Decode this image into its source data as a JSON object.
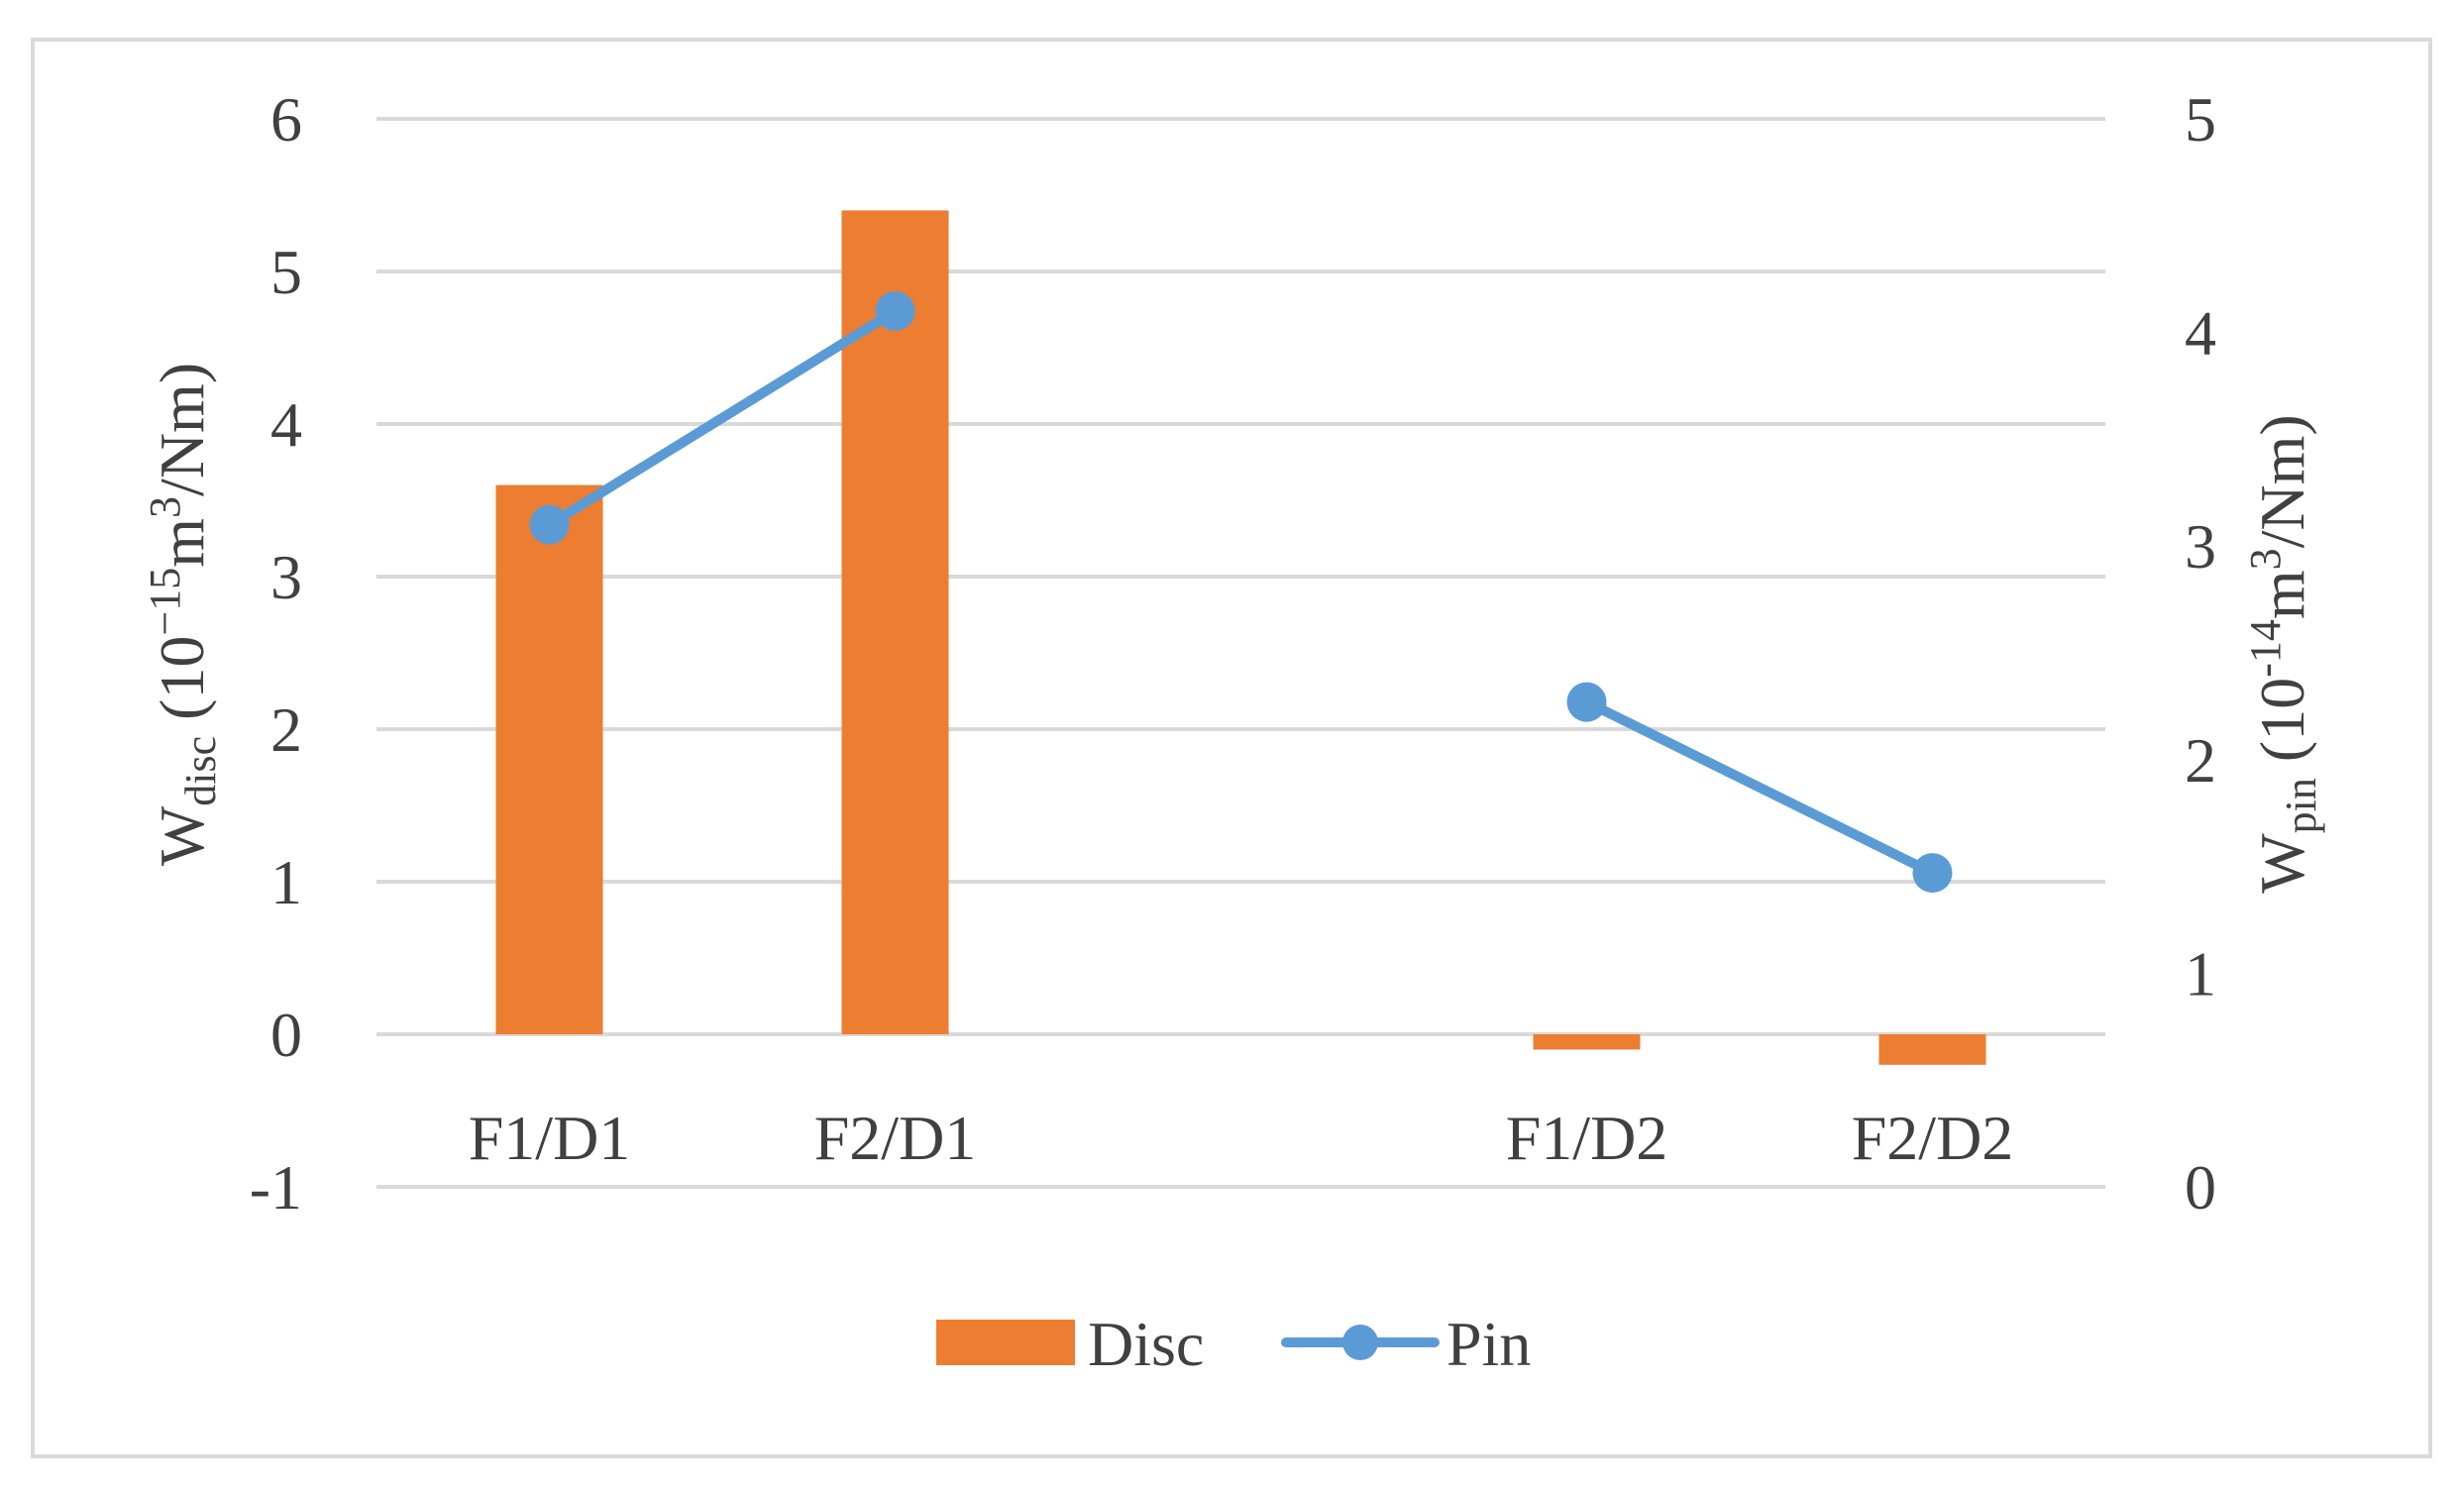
{
  "chart_data": {
    "type": "bar",
    "categories": [
      "F1/D1",
      "F2/D1",
      "",
      "F1/D2",
      "F2/D2"
    ],
    "series": [
      {
        "name": "Disc",
        "type": "bar",
        "axis": "left",
        "color": "#ED7D31",
        "values": [
          3.6,
          5.4,
          null,
          -0.1,
          -0.2
        ]
      },
      {
        "name": "Pin",
        "type": "line",
        "axis": "right",
        "color": "#5B9BD5",
        "marker": "circle",
        "values": [
          3.1,
          4.1,
          null,
          2.27,
          1.47
        ]
      }
    ],
    "y_left": {
      "label_main": "W",
      "label_sub": "disc",
      "label_unit_prefix": " (10",
      "label_exp": "−15",
      "label_unit_mid": "m",
      "label_exp2": "3",
      "label_unit_suffix": "/Nm)",
      "ylim": [
        -1,
        6
      ],
      "ticks": [
        -1,
        0,
        1,
        2,
        3,
        4,
        5,
        6
      ],
      "tick_labels": [
        "-1",
        "0",
        "1",
        "2",
        "3",
        "4",
        "5",
        "6"
      ]
    },
    "y_right": {
      "label_main": "W",
      "label_sub": "pin",
      "label_unit_prefix": " (10",
      "label_exp": "-14",
      "label_unit_mid": "m",
      "label_exp2": "3",
      "label_unit_suffix": "/Nm)",
      "ylim": [
        0,
        5
      ],
      "ticks": [
        0,
        1,
        2,
        3,
        4,
        5
      ],
      "tick_labels": [
        "0",
        "1",
        "2",
        "3",
        "4",
        "5"
      ]
    },
    "grid": true,
    "legend": {
      "position": "bottom",
      "entries": [
        "Disc",
        "Pin"
      ]
    }
  }
}
